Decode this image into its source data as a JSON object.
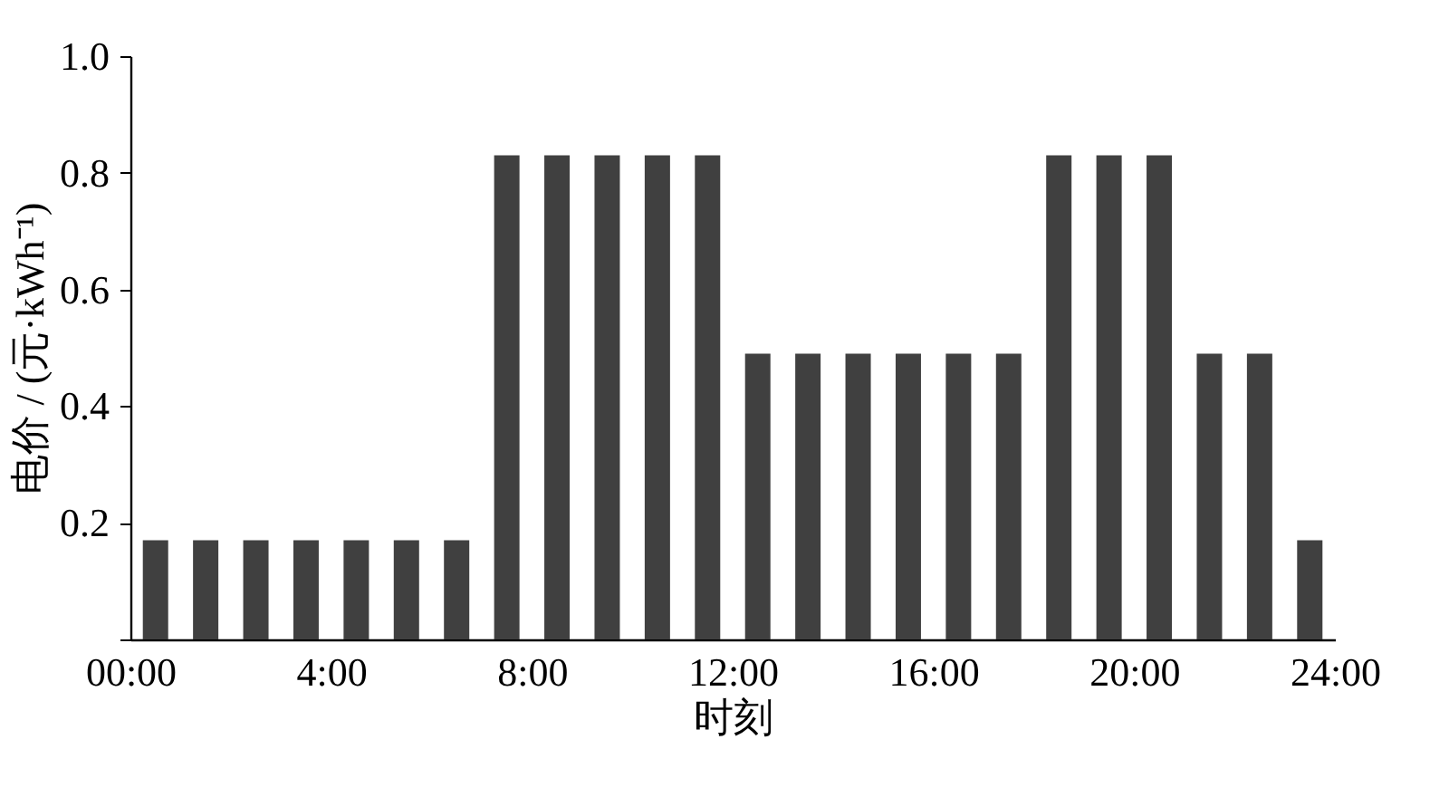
{
  "chart_data": {
    "type": "bar",
    "xlabel": "时刻",
    "ylabel": "电价 / (元·kWh⁻¹)",
    "x": [
      0.5,
      1.5,
      2.5,
      3.5,
      4.5,
      5.5,
      6.5,
      7.5,
      8.5,
      9.5,
      10.5,
      11.5,
      12.5,
      13.5,
      14.5,
      15.5,
      16.5,
      17.5,
      18.5,
      19.5,
      20.5,
      21.5,
      22.5,
      23.5
    ],
    "series": [
      {
        "color": "#404040",
        "values": [
          0.17,
          0.17,
          0.17,
          0.17,
          0.17,
          0.17,
          0.17,
          0.83,
          0.83,
          0.83,
          0.83,
          0.83,
          0.49,
          0.49,
          0.49,
          0.49,
          0.49,
          0.49,
          0.83,
          0.83,
          0.83,
          0.49,
          0.49,
          0.17
        ]
      }
    ],
    "xlim": [
      0,
      24
    ],
    "xticks": [
      {
        "value": 0,
        "label": "00:00"
      },
      {
        "value": 4,
        "label": "4:00"
      },
      {
        "value": 8,
        "label": "8:00"
      },
      {
        "value": 12,
        "label": "12:00"
      },
      {
        "value": 16,
        "label": "16:00"
      },
      {
        "value": 20,
        "label": "20:00"
      },
      {
        "value": 24,
        "label": "24:00"
      }
    ],
    "ylim": [
      0,
      1
    ],
    "yticks": [
      {
        "value": 0,
        "label": null
      },
      0.2,
      0.4,
      0.6,
      0.8,
      {
        "value": 1,
        "label": "1.0"
      }
    ],
    "grid": false
  }
}
